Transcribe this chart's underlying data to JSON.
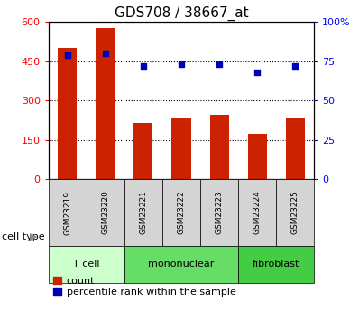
{
  "title": "GDS708 / 38667_at",
  "samples": [
    "GSM23219",
    "GSM23220",
    "GSM23221",
    "GSM23222",
    "GSM23223",
    "GSM23224",
    "GSM23225"
  ],
  "counts": [
    500,
    575,
    215,
    235,
    245,
    175,
    235
  ],
  "percentiles": [
    79,
    80,
    72,
    73,
    73,
    68,
    72
  ],
  "ct_groups": [
    {
      "label": "T cell",
      "start": 0,
      "end": 1,
      "color": "#ccffcc"
    },
    {
      "label": "mononuclear",
      "start": 2,
      "end": 4,
      "color": "#55dd55"
    },
    {
      "label": "fibroblast",
      "start": 5,
      "end": 6,
      "color": "#44cc44"
    }
  ],
  "sample_box_color": "#d4d4d4",
  "ylim_left": [
    0,
    600
  ],
  "ylim_right": [
    0,
    100
  ],
  "yticks_left": [
    0,
    150,
    300,
    450,
    600
  ],
  "ytick_labels_left": [
    "0",
    "150",
    "300",
    "450",
    "600"
  ],
  "yticks_right": [
    0,
    25,
    50,
    75,
    100
  ],
  "ytick_labels_right": [
    "0",
    "25",
    "50",
    "75",
    "100%"
  ],
  "bar_color": "#cc2200",
  "dot_color": "#0000bb",
  "bar_width": 0.5,
  "legend_labels": [
    "count",
    "percentile rank within the sample"
  ],
  "cell_type_label": "cell type"
}
